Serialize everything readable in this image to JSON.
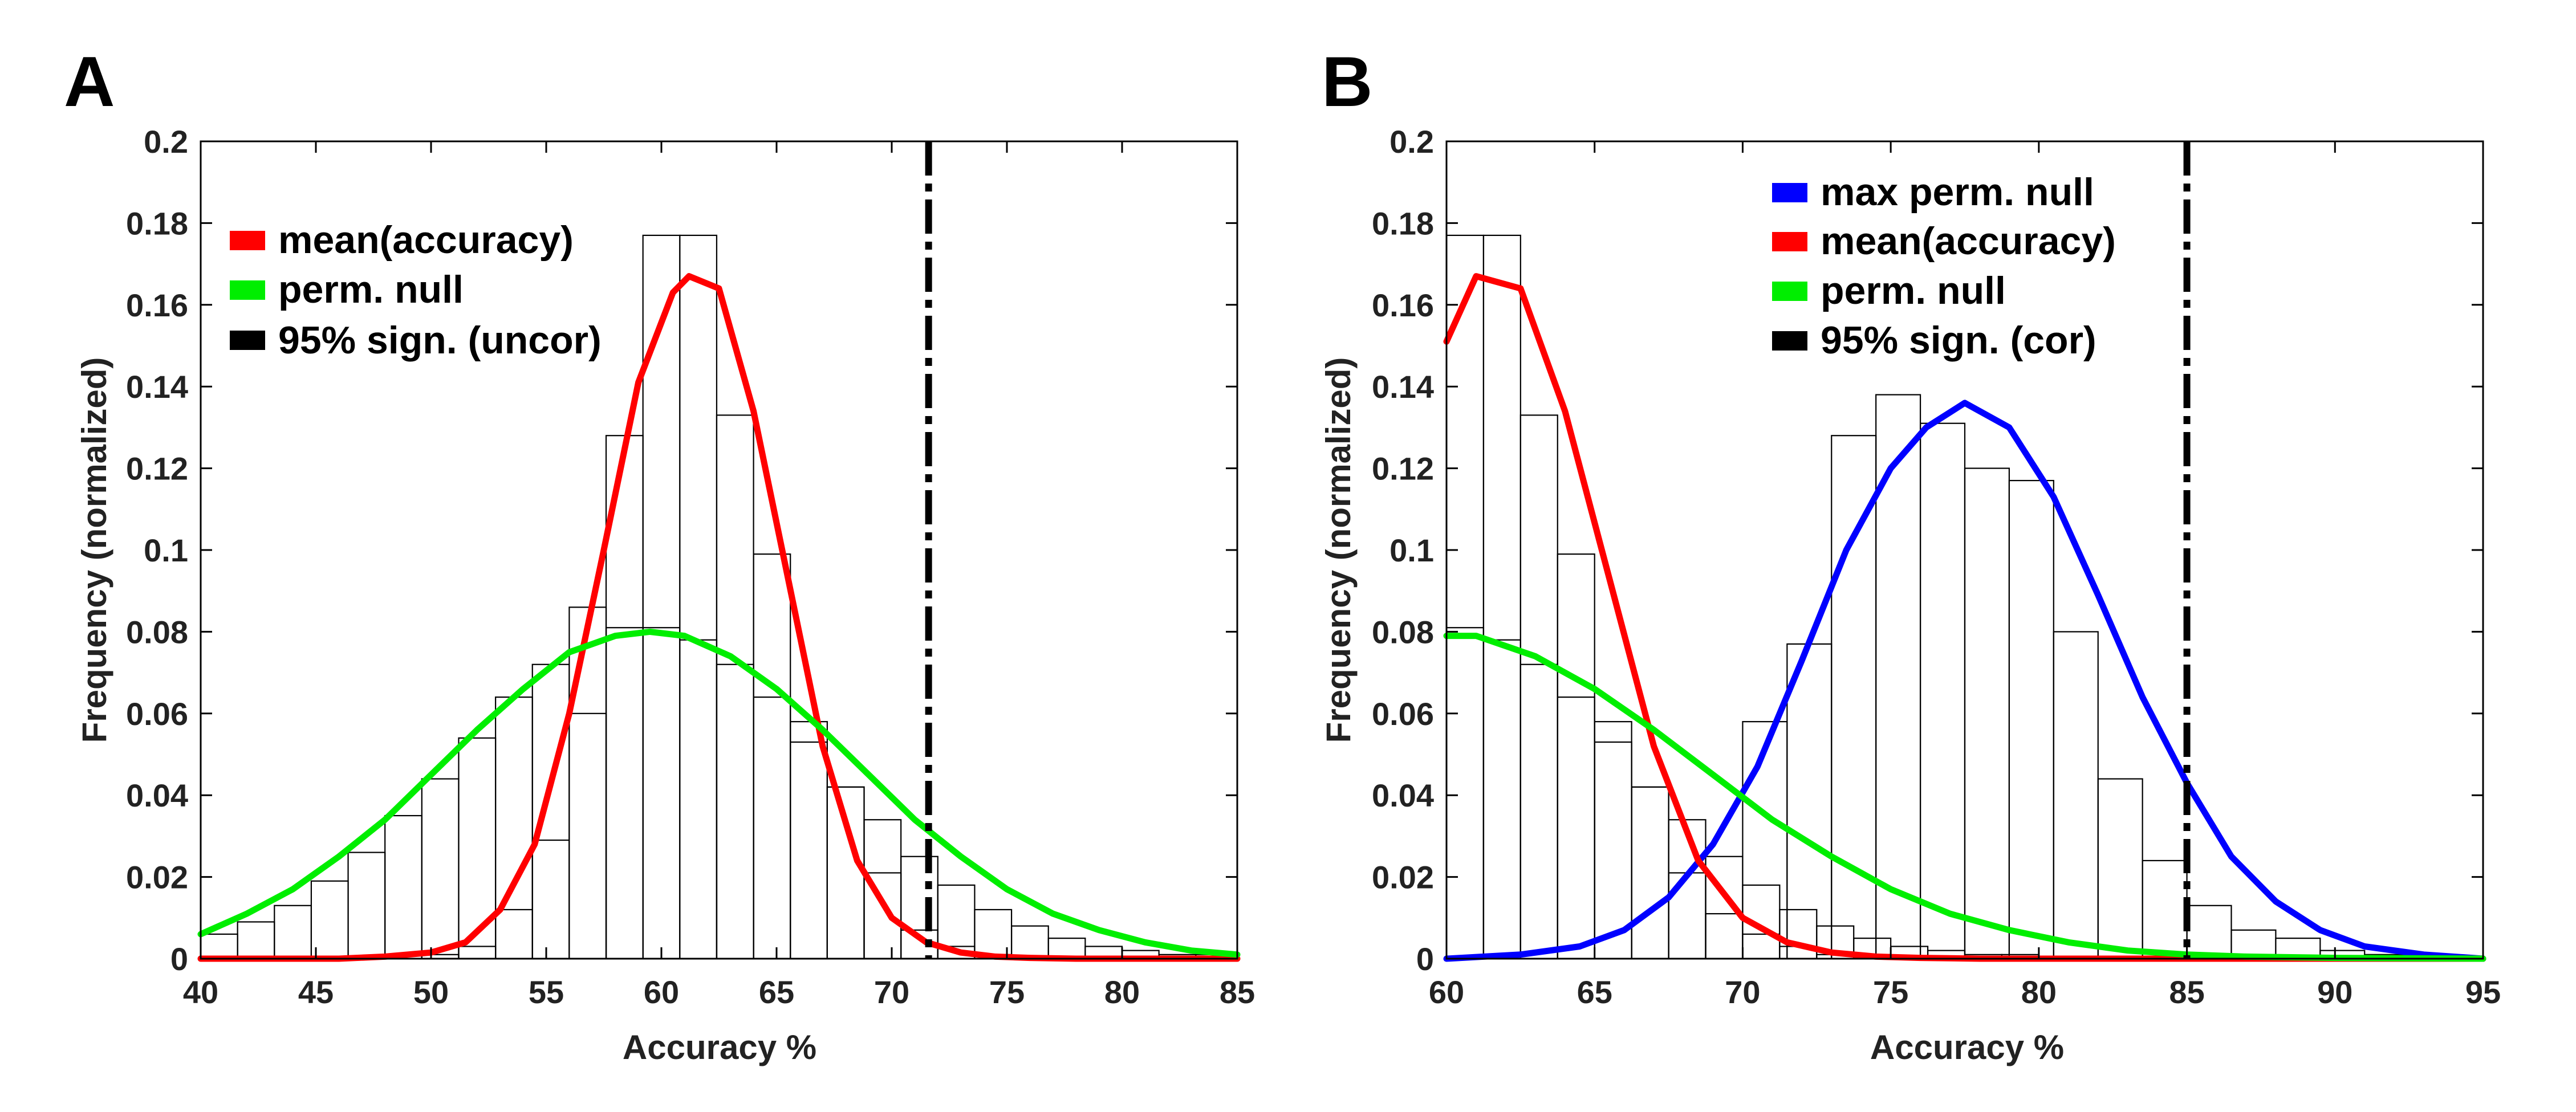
{
  "figure": {
    "panels": [
      "A",
      "B"
    ]
  },
  "colors": {
    "mean_accuracy": "#ff0000",
    "perm_null": "#00ee00",
    "max_perm_null": "#0000ff",
    "threshold": "#000000",
    "histogram_edge": "#000000"
  },
  "chart_data": [
    {
      "type": "bar",
      "panel": "A",
      "xlabel": "Accuracy %",
      "ylabel": "Frequency (normalized)",
      "xlim": [
        40,
        85
      ],
      "ylim": [
        0,
        0.2
      ],
      "x_ticks": [
        40,
        45,
        50,
        55,
        60,
        65,
        70,
        75,
        80,
        85
      ],
      "y_ticks": [
        0,
        0.02,
        0.04,
        0.06,
        0.08,
        0.1,
        0.12,
        0.14,
        0.16,
        0.18,
        0.2
      ],
      "y_tick_labels": [
        "0",
        "0.02",
        "0.04",
        "0.06",
        "0.08",
        "0.1",
        "0.12",
        "0.14",
        "0.16",
        "0.18",
        "0.2"
      ],
      "legend": [
        "mean(accuracy)",
        "perm. null",
        "95% sign. (uncor)"
      ],
      "legend_position": "top-left",
      "histograms": [
        {
          "name": "mean(accuracy) histogram",
          "bin_edges": [
            40,
            41.6,
            43.2,
            44.8,
            46.4,
            48.0,
            49.6,
            51.2,
            52.8,
            54.4,
            56.0,
            57.6,
            59.2,
            60.8,
            62.4,
            64.0,
            65.6,
            67.2,
            68.8,
            70.4,
            72.0,
            73.6,
            75.2,
            76.8,
            78.4,
            80.0,
            81.6,
            83.2,
            84.8
          ],
          "values": [
            0,
            0,
            0,
            0,
            0,
            0,
            0.001,
            0.003,
            0.012,
            0.029,
            0.06,
            0.128,
            0.177,
            0.177,
            0.133,
            0.099,
            0.058,
            0.042,
            0.021,
            0.007,
            0.003,
            0.001,
            0,
            0,
            0,
            0,
            0,
            0
          ]
        },
        {
          "name": "perm. null histogram",
          "bin_edges": [
            40,
            41.6,
            43.2,
            44.8,
            46.4,
            48.0,
            49.6,
            51.2,
            52.8,
            54.4,
            56.0,
            57.6,
            59.2,
            60.8,
            62.4,
            64.0,
            65.6,
            67.2,
            68.8,
            70.4,
            72.0,
            73.6,
            75.2,
            76.8,
            78.4,
            80.0,
            81.6,
            83.2,
            84.8
          ],
          "values": [
            0.006,
            0.009,
            0.013,
            0.019,
            0.026,
            0.035,
            0.044,
            0.054,
            0.064,
            0.072,
            0.086,
            0.081,
            0.081,
            0.078,
            0.072,
            0.064,
            0.053,
            0.042,
            0.034,
            0.025,
            0.018,
            0.012,
            0.008,
            0.005,
            0.003,
            0.002,
            0.001,
            0.001
          ]
        }
      ],
      "series": [
        {
          "name": "mean(accuracy)",
          "type": "line",
          "color": "#ff0000",
          "x": [
            40,
            42,
            44,
            46,
            48,
            50,
            51.5,
            53,
            54.5,
            56,
            57.5,
            59,
            60.5,
            61.2,
            62.5,
            64,
            65.5,
            67,
            68.5,
            70,
            71.5,
            73,
            74.5,
            76,
            78,
            80,
            82,
            85
          ],
          "y": [
            0,
            0,
            0,
            0,
            0.0005,
            0.0015,
            0.004,
            0.012,
            0.028,
            0.06,
            0.1,
            0.141,
            0.163,
            0.167,
            0.164,
            0.134,
            0.093,
            0.052,
            0.024,
            0.01,
            0.004,
            0.0015,
            0.0005,
            0.0002,
            0,
            0,
            0,
            0
          ]
        },
        {
          "name": "perm. null",
          "type": "line",
          "color": "#00ee00",
          "x": [
            40,
            42,
            44,
            46,
            48,
            50,
            52,
            54,
            56,
            58,
            59.5,
            61,
            63,
            65,
            67,
            69,
            71,
            73,
            75,
            77,
            79,
            81,
            83,
            85
          ],
          "y": [
            0.006,
            0.011,
            0.017,
            0.025,
            0.034,
            0.045,
            0.056,
            0.066,
            0.075,
            0.079,
            0.08,
            0.079,
            0.074,
            0.066,
            0.056,
            0.045,
            0.034,
            0.025,
            0.017,
            0.011,
            0.007,
            0.004,
            0.002,
            0.001
          ]
        }
      ],
      "threshold": {
        "name": "95% sign. (uncor)",
        "x": 71.6
      }
    },
    {
      "type": "bar",
      "panel": "B",
      "xlabel": "Accuracy %",
      "ylabel": "Frequency (normalized)",
      "xlim": [
        60,
        95
      ],
      "ylim": [
        0,
        0.2
      ],
      "x_ticks": [
        60,
        65,
        70,
        75,
        80,
        85,
        90,
        95
      ],
      "y_ticks": [
        0,
        0.02,
        0.04,
        0.06,
        0.08,
        0.1,
        0.12,
        0.14,
        0.16,
        0.18,
        0.2
      ],
      "y_tick_labels": [
        "0",
        "0.02",
        "0.04",
        "0.06",
        "0.08",
        "0.1",
        "0.12",
        "0.14",
        "0.16",
        "0.18",
        "0.2"
      ],
      "legend": [
        "max perm. null",
        "mean(accuracy)",
        "perm. null",
        "95% sign. (cor)"
      ],
      "legend_position": "top-center",
      "histograms": [
        {
          "name": "mean(accuracy) histogram",
          "bin_edges": [
            60,
            61.25,
            62.5,
            63.75,
            65.0,
            66.25,
            67.5,
            68.75,
            70.0,
            71.25,
            72.5,
            73.75,
            75.0,
            76.25,
            77.5,
            78.75,
            80.0
          ],
          "values": [
            0.177,
            0.177,
            0.133,
            0.099,
            0.058,
            0.042,
            0.021,
            0.011,
            0.006,
            0.003,
            0.001,
            0.001,
            0,
            0,
            0,
            0
          ]
        },
        {
          "name": "perm. null histogram",
          "bin_edges": [
            60,
            61.25,
            62.5,
            63.75,
            65.0,
            66.25,
            67.5,
            68.75,
            70.0,
            71.25,
            72.5,
            73.75,
            75.0,
            76.25,
            77.5,
            78.75,
            80.0,
            81.25,
            82.5
          ],
          "values": [
            0.081,
            0.078,
            0.072,
            0.064,
            0.053,
            0.042,
            0.034,
            0.025,
            0.018,
            0.012,
            0.008,
            0.005,
            0.003,
            0.002,
            0.001,
            0.001,
            0,
            0
          ]
        },
        {
          "name": "max perm. null histogram",
          "bin_edges": [
            70.0,
            71.5,
            73.0,
            74.5,
            76.0,
            77.5,
            79.0,
            80.5,
            82.0,
            83.5,
            85.0,
            86.5,
            88.0,
            89.5,
            91.0,
            92.5
          ],
          "values": [
            0.058,
            0.077,
            0.128,
            0.138,
            0.131,
            0.12,
            0.117,
            0.08,
            0.044,
            0.024,
            0.013,
            0.007,
            0.005,
            0.002,
            0.001
          ]
        }
      ],
      "series": [
        {
          "name": "max perm. null",
          "type": "line",
          "color": "#0000ff",
          "x": [
            60,
            62.5,
            64.5,
            66,
            67.5,
            69,
            70.5,
            72,
            73.5,
            75,
            76.2,
            77.5,
            79,
            80.5,
            82,
            83.5,
            85,
            86.5,
            88,
            89.5,
            91,
            93,
            95
          ],
          "y": [
            0,
            0.001,
            0.003,
            0.007,
            0.015,
            0.028,
            0.047,
            0.073,
            0.1,
            0.12,
            0.13,
            0.136,
            0.13,
            0.113,
            0.089,
            0.064,
            0.043,
            0.025,
            0.014,
            0.007,
            0.003,
            0.001,
            0
          ]
        },
        {
          "name": "mean(accuracy)",
          "type": "line",
          "color": "#ff0000",
          "x": [
            60,
            61,
            62.5,
            64,
            65.5,
            67,
            68.5,
            70,
            71.5,
            73,
            74.5,
            76,
            78,
            80,
            85,
            90,
            95
          ],
          "y": [
            0.151,
            0.167,
            0.164,
            0.134,
            0.093,
            0.052,
            0.024,
            0.01,
            0.004,
            0.0015,
            0.0005,
            0.0002,
            0,
            0,
            0,
            0,
            0
          ]
        },
        {
          "name": "perm. null",
          "type": "line",
          "color": "#00ee00",
          "x": [
            60,
            61,
            63,
            65,
            67,
            69,
            71,
            73,
            75,
            77,
            79,
            81,
            83,
            85,
            87,
            90,
            95
          ],
          "y": [
            0.079,
            0.079,
            0.074,
            0.066,
            0.056,
            0.045,
            0.034,
            0.025,
            0.017,
            0.011,
            0.007,
            0.004,
            0.002,
            0.001,
            0.0005,
            0.0002,
            0
          ]
        }
      ],
      "threshold": {
        "name": "95% sign. (cor)",
        "x": 85
      }
    }
  ]
}
